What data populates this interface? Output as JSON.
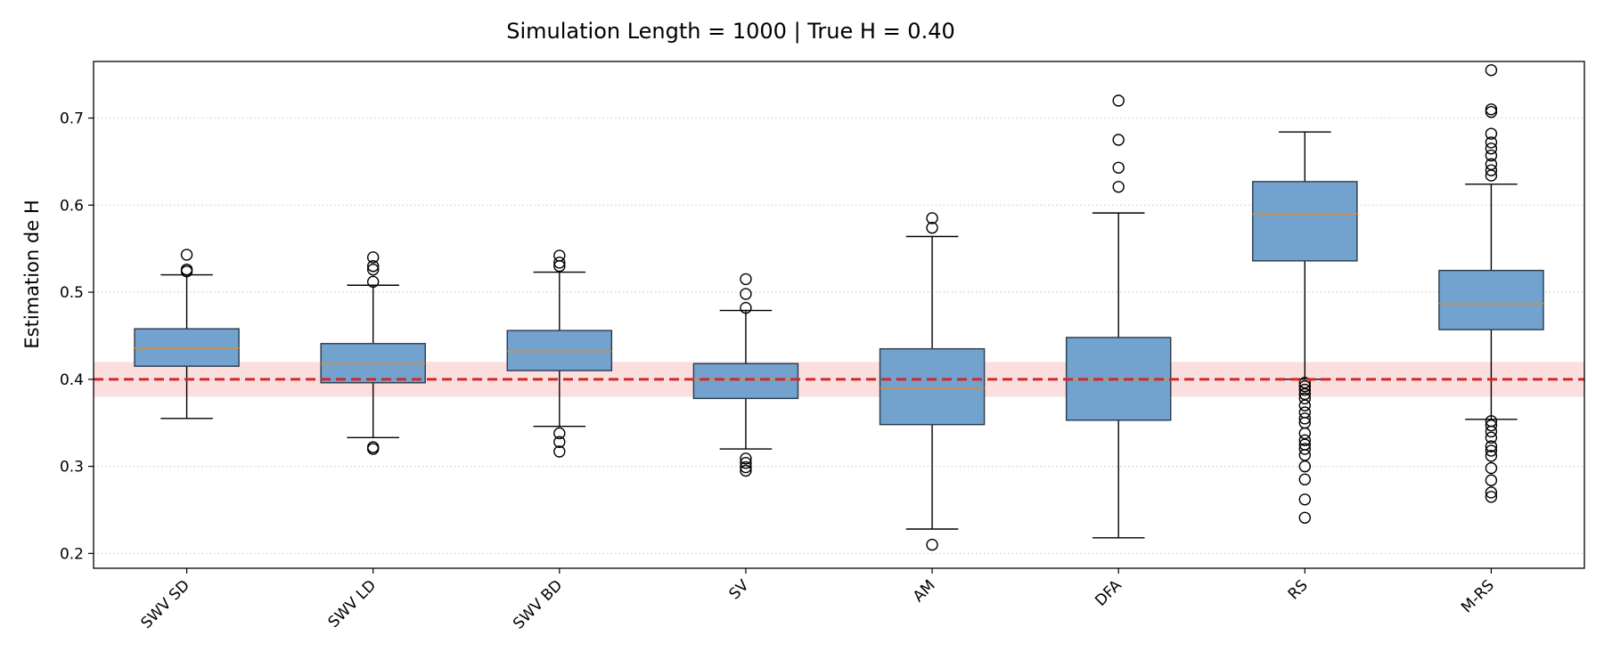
{
  "chart_data": {
    "type": "box",
    "title": "Simulation Length = 1000  |  True H = 0.40",
    "xlabel": "",
    "ylabel": "Estimation de H",
    "ylim": [
      0.183,
      0.765
    ],
    "yticks": [
      0.2,
      0.3,
      0.4,
      0.5,
      0.6,
      0.7
    ],
    "ytick_labels": [
      "0.2",
      "0.3",
      "0.4",
      "0.5",
      "0.6",
      "0.7"
    ],
    "grid": "horizontal-dotted",
    "reference_line": {
      "value": 0.4,
      "band": [
        0.38,
        0.42
      ]
    },
    "categories": [
      "SWV SD",
      "SWV LD",
      "SWV BD",
      "SV",
      "AM",
      "DFA",
      "RS",
      "M-RS"
    ],
    "boxes": [
      {
        "category": "SWV SD",
        "whisker_low": 0.355,
        "q1": 0.415,
        "median": 0.436,
        "q3": 0.458,
        "whisker_high": 0.52,
        "outliers": [
          0.524,
          0.526,
          0.543
        ]
      },
      {
        "category": "SWV LD",
        "whisker_low": 0.333,
        "q1": 0.396,
        "median": 0.418,
        "q3": 0.441,
        "whisker_high": 0.508,
        "outliers": [
          0.32,
          0.322,
          0.512,
          0.526,
          0.53,
          0.54
        ]
      },
      {
        "category": "SWV BD",
        "whisker_low": 0.346,
        "q1": 0.41,
        "median": 0.432,
        "q3": 0.456,
        "whisker_high": 0.523,
        "outliers": [
          0.317,
          0.328,
          0.338,
          0.53,
          0.534,
          0.542
        ]
      },
      {
        "category": "SV",
        "whisker_low": 0.32,
        "q1": 0.378,
        "median": 0.4,
        "q3": 0.418,
        "whisker_high": 0.479,
        "outliers": [
          0.295,
          0.299,
          0.304,
          0.309,
          0.482,
          0.498,
          0.515
        ]
      },
      {
        "category": "AM",
        "whisker_low": 0.228,
        "q1": 0.348,
        "median": 0.39,
        "q3": 0.435,
        "whisker_high": 0.564,
        "outliers": [
          0.21,
          0.574,
          0.585
        ]
      },
      {
        "category": "DFA",
        "whisker_low": 0.218,
        "q1": 0.353,
        "median": 0.4,
        "q3": 0.448,
        "whisker_high": 0.591,
        "outliers": [
          0.621,
          0.643,
          0.675,
          0.72
        ]
      },
      {
        "category": "RS",
        "whisker_low": 0.4,
        "q1": 0.536,
        "median": 0.59,
        "q3": 0.627,
        "whisker_high": 0.684,
        "outliers": [
          0.241,
          0.262,
          0.285,
          0.3,
          0.313,
          0.32,
          0.325,
          0.33,
          0.338,
          0.35,
          0.355,
          0.362,
          0.37,
          0.378,
          0.383,
          0.388,
          0.392,
          0.396
        ]
      },
      {
        "category": "M-RS",
        "whisker_low": 0.354,
        "q1": 0.457,
        "median": 0.487,
        "q3": 0.525,
        "whisker_high": 0.624,
        "outliers": [
          0.265,
          0.27,
          0.284,
          0.298,
          0.312,
          0.318,
          0.323,
          0.333,
          0.34,
          0.347,
          0.352,
          0.634,
          0.64,
          0.647,
          0.657,
          0.665,
          0.672,
          0.682,
          0.707,
          0.71,
          0.755
        ]
      }
    ],
    "colors": {
      "box_fill": "#6a9ecb",
      "box_edge": "#2b3a4a",
      "median": "#e08a2a",
      "reference_line": "#d62728",
      "reference_band": "#f9d4d4",
      "grid": "#c8c8c8"
    }
  }
}
